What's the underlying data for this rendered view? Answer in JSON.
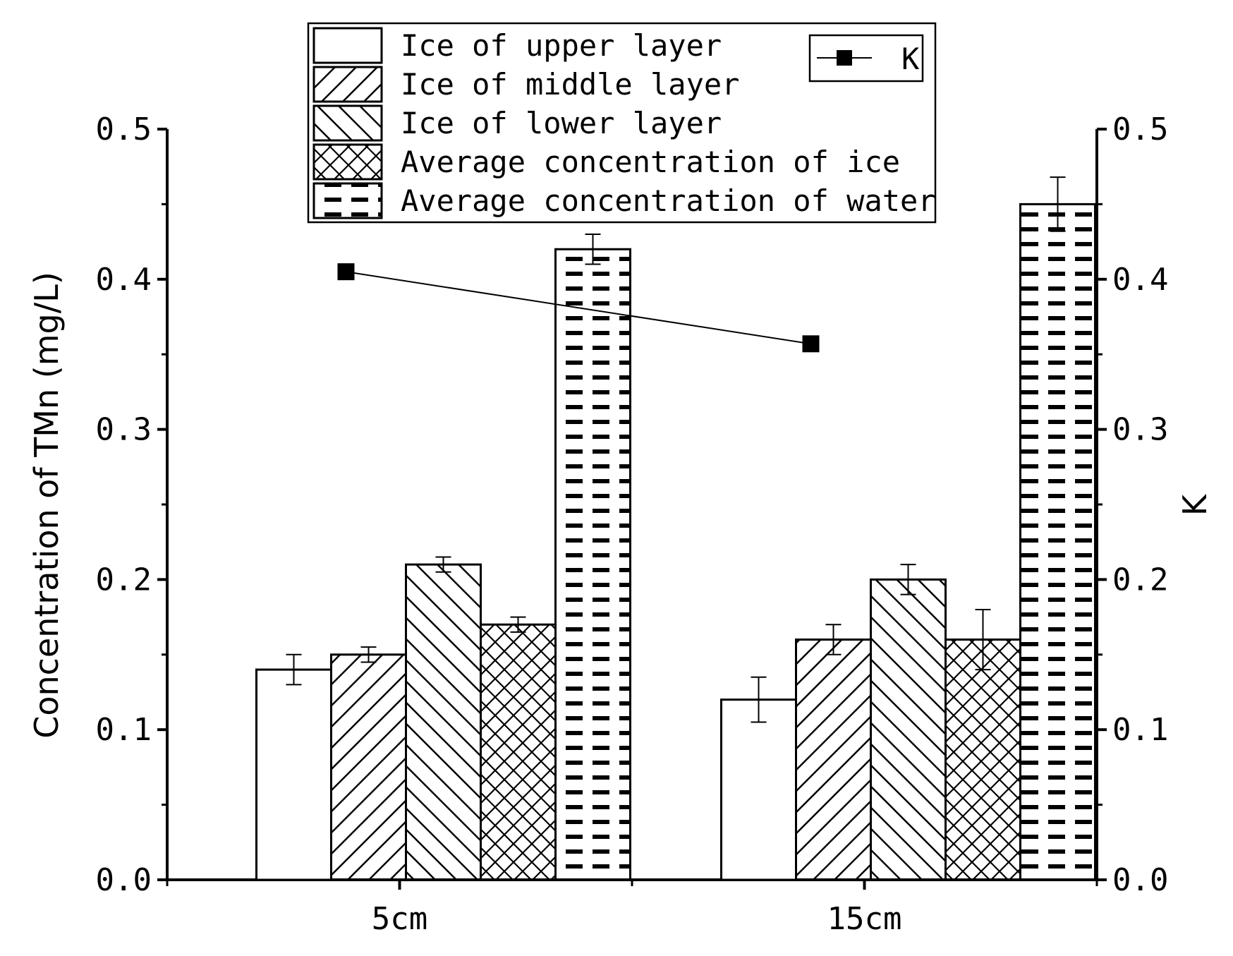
{
  "chart_data": {
    "type": "bar",
    "categories": [
      "5cm",
      "15cm"
    ],
    "ylabel": "Concentration of TMn (mg/L)",
    "ylabel_right": "K",
    "ylim": [
      0,
      0.5
    ],
    "ylim_right": [
      0,
      0.5
    ],
    "yticks": [
      "0.0",
      "0.1",
      "0.2",
      "0.3",
      "0.4",
      "0.5"
    ],
    "yticks_right": [
      "0.0",
      "0.1",
      "0.2",
      "0.3",
      "0.4",
      "0.5"
    ],
    "series": [
      {
        "name": "Ice of upper layer",
        "pattern": "none",
        "values": [
          0.14,
          0.12
        ],
        "errors": [
          0.01,
          0.015
        ]
      },
      {
        "name": "Ice of middle layer",
        "pattern": "diag-up",
        "values": [
          0.15,
          0.16
        ],
        "errors": [
          0.005,
          0.01
        ]
      },
      {
        "name": "Ice of lower layer",
        "pattern": "diag-down",
        "values": [
          0.21,
          0.2
        ],
        "errors": [
          0.005,
          0.01
        ]
      },
      {
        "name": "Average concentration of ice",
        "pattern": "cross",
        "values": [
          0.17,
          0.16
        ],
        "errors": [
          0.005,
          0.02
        ]
      },
      {
        "name": "Average concentration of water",
        "pattern": "dash",
        "values": [
          0.42,
          0.45
        ],
        "errors": [
          0.01,
          0.018
        ]
      }
    ],
    "line_series": {
      "name": "K",
      "values": [
        0.405,
        0.357
      ],
      "axis": "right",
      "marker": "square"
    },
    "legend_position": "top-center"
  },
  "colors": {
    "stroke": "#000000",
    "fill": "#ffffff"
  }
}
